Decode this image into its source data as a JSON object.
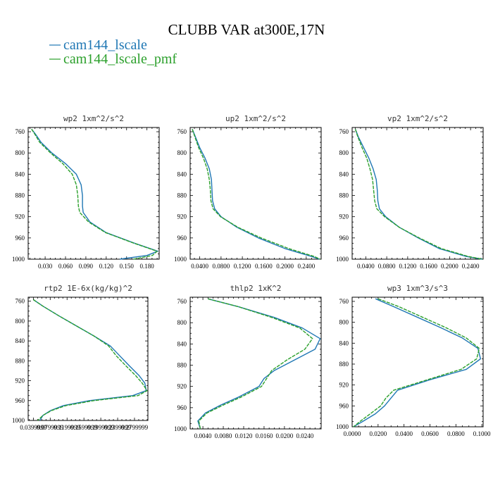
{
  "chart_data": {
    "type": "line",
    "title": "CLUBB VAR at300E,17N",
    "legend": [
      {
        "name": "cam144_lscale",
        "color": "#1f77b4"
      },
      {
        "name": "cam144_lscale_pmf",
        "color": "#2ca02c"
      }
    ],
    "panels": [
      {
        "title": "wp2   1xm^2/s^2",
        "xlim": [
          0.005,
          0.198
        ],
        "ylim": [
          1000,
          752
        ],
        "xticks": [
          0.03,
          0.06,
          0.09,
          0.12,
          0.15,
          0.18
        ],
        "xtick_labels": [
          "0.030",
          "0.060",
          "0.090",
          "0.120",
          "0.150",
          "0.180"
        ],
        "yticks": [
          760,
          800,
          840,
          880,
          920,
          960,
          1000
        ],
        "series": [
          {
            "name": "cam144_lscale",
            "y": [
              755,
              765,
              780,
              800,
              820,
              840,
              860,
              880,
              900,
              912,
              930,
              950,
              970,
              985,
              993,
              1000
            ],
            "x": [
              0.01,
              0.016,
              0.024,
              0.04,
              0.06,
              0.076,
              0.083,
              0.085,
              0.085,
              0.086,
              0.096,
              0.12,
              0.162,
              0.196,
              0.18,
              0.14
            ]
          },
          {
            "name": "cam144_lscale_pmf",
            "y": [
              755,
              765,
              780,
              800,
              820,
              840,
              860,
              880,
              900,
              912,
              930,
              950,
              970,
              985,
              993,
              1000
            ],
            "x": [
              0.01,
              0.015,
              0.022,
              0.038,
              0.056,
              0.07,
              0.076,
              0.078,
              0.079,
              0.081,
              0.094,
              0.119,
              0.161,
              0.195,
              0.188,
              0.16
            ]
          }
        ]
      },
      {
        "title": "up2   1xm^2/s^2",
        "xlim": [
          0.022,
          0.268
        ],
        "ylim": [
          1000,
          752
        ],
        "xticks": [
          0.04,
          0.08,
          0.12,
          0.16,
          0.2,
          0.24
        ],
        "xtick_labels": [
          "0.0400",
          "0.0800",
          "0.1200",
          "0.1600",
          "0.2000",
          "0.2400"
        ],
        "yticks": [
          760,
          800,
          840,
          880,
          920,
          960,
          1000
        ],
        "series": [
          {
            "name": "cam144_lscale",
            "y": [
              755,
              770,
              790,
              810,
              830,
              850,
              870,
              890,
              905,
              920,
              940,
              960,
              980,
              995,
              1000
            ],
            "x": [
              0.026,
              0.032,
              0.04,
              0.05,
              0.058,
              0.062,
              0.063,
              0.064,
              0.068,
              0.08,
              0.11,
              0.15,
              0.2,
              0.25,
              0.265
            ]
          },
          {
            "name": "cam144_lscale_pmf",
            "y": [
              755,
              770,
              790,
              810,
              830,
              850,
              870,
              890,
              905,
              920,
              940,
              960,
              980,
              995,
              1000
            ],
            "x": [
              0.026,
              0.031,
              0.038,
              0.047,
              0.054,
              0.058,
              0.06,
              0.061,
              0.065,
              0.079,
              0.112,
              0.155,
              0.207,
              0.255,
              0.266
            ]
          }
        ]
      },
      {
        "title": "vp2   1xm^2/s^2",
        "xlim": [
          0.014,
          0.264
        ],
        "ylim": [
          1000,
          752
        ],
        "xticks": [
          0.04,
          0.08,
          0.12,
          0.16,
          0.2,
          0.24
        ],
        "xtick_labels": [
          "0.0400",
          "0.0800",
          "0.1200",
          "0.1600",
          "0.2000",
          "0.2400"
        ],
        "yticks": [
          760,
          800,
          840,
          880,
          920,
          960,
          1000
        ],
        "series": [
          {
            "name": "cam144_lscale",
            "y": [
              755,
              770,
              790,
              810,
              830,
              850,
              870,
              890,
              905,
              920,
              940,
              960,
              980,
              995,
              1000
            ],
            "x": [
              0.02,
              0.026,
              0.036,
              0.046,
              0.054,
              0.06,
              0.062,
              0.063,
              0.066,
              0.078,
              0.104,
              0.14,
              0.18,
              0.232,
              0.262
            ]
          },
          {
            "name": "cam144_lscale_pmf",
            "y": [
              755,
              770,
              790,
              810,
              830,
              850,
              870,
              890,
              905,
              920,
              940,
              960,
              980,
              995,
              1000
            ],
            "x": [
              0.02,
              0.025,
              0.033,
              0.042,
              0.048,
              0.053,
              0.055,
              0.057,
              0.061,
              0.076,
              0.104,
              0.142,
              0.184,
              0.236,
              0.263
            ]
          }
        ]
      },
      {
        "title": "rtp2   1E-6x(kg/kg)^2",
        "xlim": [
          0.028,
          0.305
        ],
        "ylim": [
          1000,
          752
        ],
        "xticks": [
          0.04,
          0.079,
          0.118,
          0.157,
          0.196,
          0.235,
          0.274
        ],
        "xtick_labels": [
          "0.0399999",
          "0.0799999",
          "0.1199999",
          "0.1599999",
          "0.1999999",
          "0.2399999",
          "0.2799999"
        ],
        "yticks": [
          760,
          800,
          840,
          880,
          920,
          960,
          1000
        ],
        "series": [
          {
            "name": "cam144_lscale",
            "y": [
              757,
              770,
              790,
              810,
              830,
              850,
              870,
              890,
              910,
              925,
              940,
              950,
              960,
              970,
              980,
              990,
              1000
            ],
            "x": [
              0.04,
              0.062,
              0.1,
              0.14,
              0.18,
              0.218,
              0.24,
              0.262,
              0.285,
              0.298,
              0.301,
              0.27,
              0.17,
              0.11,
              0.08,
              0.062,
              0.055
            ]
          },
          {
            "name": "cam144_lscale_pmf",
            "y": [
              757,
              770,
              790,
              810,
              830,
              850,
              870,
              890,
              910,
              925,
              940,
              950,
              960,
              970,
              980,
              990,
              1000
            ],
            "x": [
              0.04,
              0.062,
              0.1,
              0.14,
              0.18,
              0.214,
              0.232,
              0.254,
              0.277,
              0.292,
              0.303,
              0.282,
              0.18,
              0.116,
              0.082,
              0.062,
              0.05
            ]
          }
        ]
      },
      {
        "title": "thlp2   1xK^2",
        "xlim": [
          0.0015,
          0.0272
        ],
        "ylim": [
          1000,
          752
        ],
        "xticks": [
          0.004,
          0.008,
          0.012,
          0.016,
          0.02,
          0.024
        ],
        "xtick_labels": [
          "0.0040",
          "0.0080",
          "0.0120",
          "0.0160",
          "0.0200",
          "0.0240"
        ],
        "yticks": [
          760,
          800,
          840,
          880,
          920,
          960,
          1000
        ],
        "series": [
          {
            "name": "cam144_lscale",
            "y": [
              755,
              770,
              790,
              810,
              830,
              850,
              870,
              890,
              905,
              920,
              940,
              955,
              970,
              985,
              1000
            ],
            "x": [
              0.005,
              0.011,
              0.018,
              0.0235,
              0.027,
              0.026,
              0.022,
              0.018,
              0.016,
              0.015,
              0.011,
              0.0075,
              0.0045,
              0.003,
              0.0035
            ]
          },
          {
            "name": "cam144_lscale_pmf",
            "y": [
              755,
              770,
              790,
              810,
              830,
              850,
              870,
              890,
              905,
              920,
              940,
              955,
              970,
              985,
              1000
            ],
            "x": [
              0.005,
              0.011,
              0.0175,
              0.023,
              0.0255,
              0.024,
              0.0205,
              0.0175,
              0.0165,
              0.0155,
              0.0115,
              0.008,
              0.0048,
              0.0032,
              0.0035
            ]
          }
        ]
      },
      {
        "title": "wp3   1xm^3/s^3",
        "xlim": [
          0.0,
          0.101
        ],
        "ylim": [
          1000,
          752
        ],
        "xticks": [
          0.0,
          0.02,
          0.04,
          0.06,
          0.08,
          0.1
        ],
        "xtick_labels": [
          "0.0000",
          "0.0200",
          "0.0400",
          "0.0600",
          "0.0800",
          "0.1000"
        ],
        "yticks": [
          760,
          800,
          840,
          880,
          920,
          960,
          1000
        ],
        "series": [
          {
            "name": "cam144_lscale",
            "y": [
              755,
              770,
              790,
              810,
              830,
              850,
              870,
              890,
              910,
              930,
              945,
              960,
              975,
              990,
              1000
            ],
            "x": [
              0.018,
              0.032,
              0.05,
              0.068,
              0.085,
              0.097,
              0.099,
              0.088,
              0.06,
              0.035,
              0.03,
              0.025,
              0.018,
              0.008,
              0.001
            ]
          },
          {
            "name": "cam144_lscale_pmf",
            "y": [
              755,
              770,
              790,
              810,
              830,
              850,
              870,
              890,
              910,
              930,
              945,
              960,
              975,
              990,
              1000
            ],
            "x": [
              0.02,
              0.036,
              0.054,
              0.072,
              0.088,
              0.098,
              0.096,
              0.084,
              0.058,
              0.032,
              0.026,
              0.022,
              0.014,
              0.006,
              0.001
            ]
          }
        ]
      }
    ]
  }
}
